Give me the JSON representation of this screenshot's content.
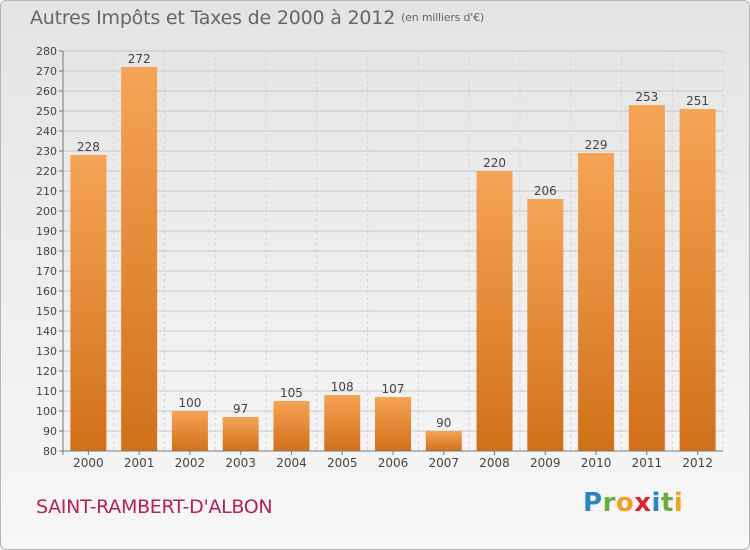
{
  "header": {
    "title": "Autres Impôts et Taxes de 2000 à 2012",
    "unit": "(en milliers d'€)"
  },
  "footer": {
    "commune": "SAINT-RAMBERT-D'ALBON",
    "logo": "Proxiti"
  },
  "colors": {
    "bar_light": "#f5a455",
    "bar_dark": "#d2701a",
    "commune": "#b5234d",
    "text": "#444444"
  },
  "chart_data": {
    "type": "bar",
    "categories": [
      "2000",
      "2001",
      "2002",
      "2003",
      "2004",
      "2005",
      "2006",
      "2007",
      "2008",
      "2009",
      "2010",
      "2011",
      "2012"
    ],
    "values": [
      228,
      272,
      100,
      97,
      105,
      108,
      107,
      90,
      220,
      206,
      229,
      253,
      251
    ],
    "data_labels": [
      "228",
      "272",
      "100",
      "97",
      "105",
      "108",
      "107",
      "90",
      "220",
      "206",
      "229",
      "253",
      "251"
    ],
    "title": "Autres Impôts et Taxes de 2000 à 2012",
    "xlabel": "",
    "ylabel": "",
    "ylim": [
      80,
      280
    ],
    "yticks": [
      80,
      90,
      100,
      110,
      120,
      130,
      140,
      150,
      160,
      170,
      180,
      190,
      200,
      210,
      220,
      230,
      240,
      250,
      260,
      270,
      280
    ],
    "grid": true,
    "legend": "none"
  }
}
